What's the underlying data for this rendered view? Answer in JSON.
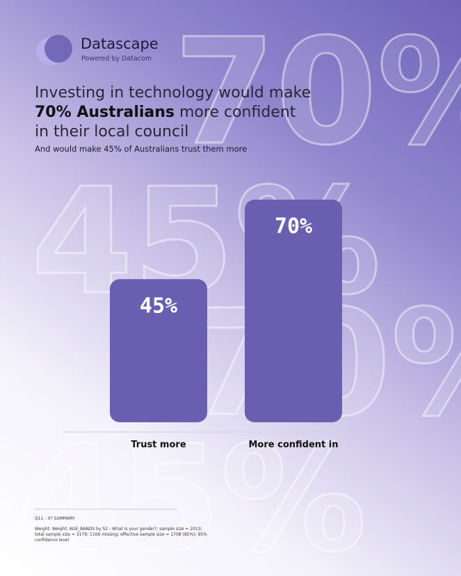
{
  "brand": {
    "name": "Datascape",
    "tagline": "Powered by Datacom"
  },
  "background_texts": [
    "70%",
    "45%",
    "70%",
    "45%"
  ],
  "chart_data": {
    "type": "bar",
    "title_parts": [
      "Investing in technology would make",
      "70% Australians",
      "more confident in their local council"
    ],
    "subtitle": "And would make 45% of Australians trust them more",
    "categories": [
      "Trust more",
      "More confident in"
    ],
    "values": [
      45,
      70
    ],
    "value_labels": [
      "45%",
      "70%"
    ],
    "color": "#6a5eb0"
  },
  "footnote": {
    "heading": "Q11 - X? SUMMARY",
    "text": "Weight: Weight; AGE_BANDS by S2 - What is your gender?; sample size = 2013; total sample size = 3179; 1166 missing; effective sample size = 1708 (85%); 95% confidence level"
  }
}
